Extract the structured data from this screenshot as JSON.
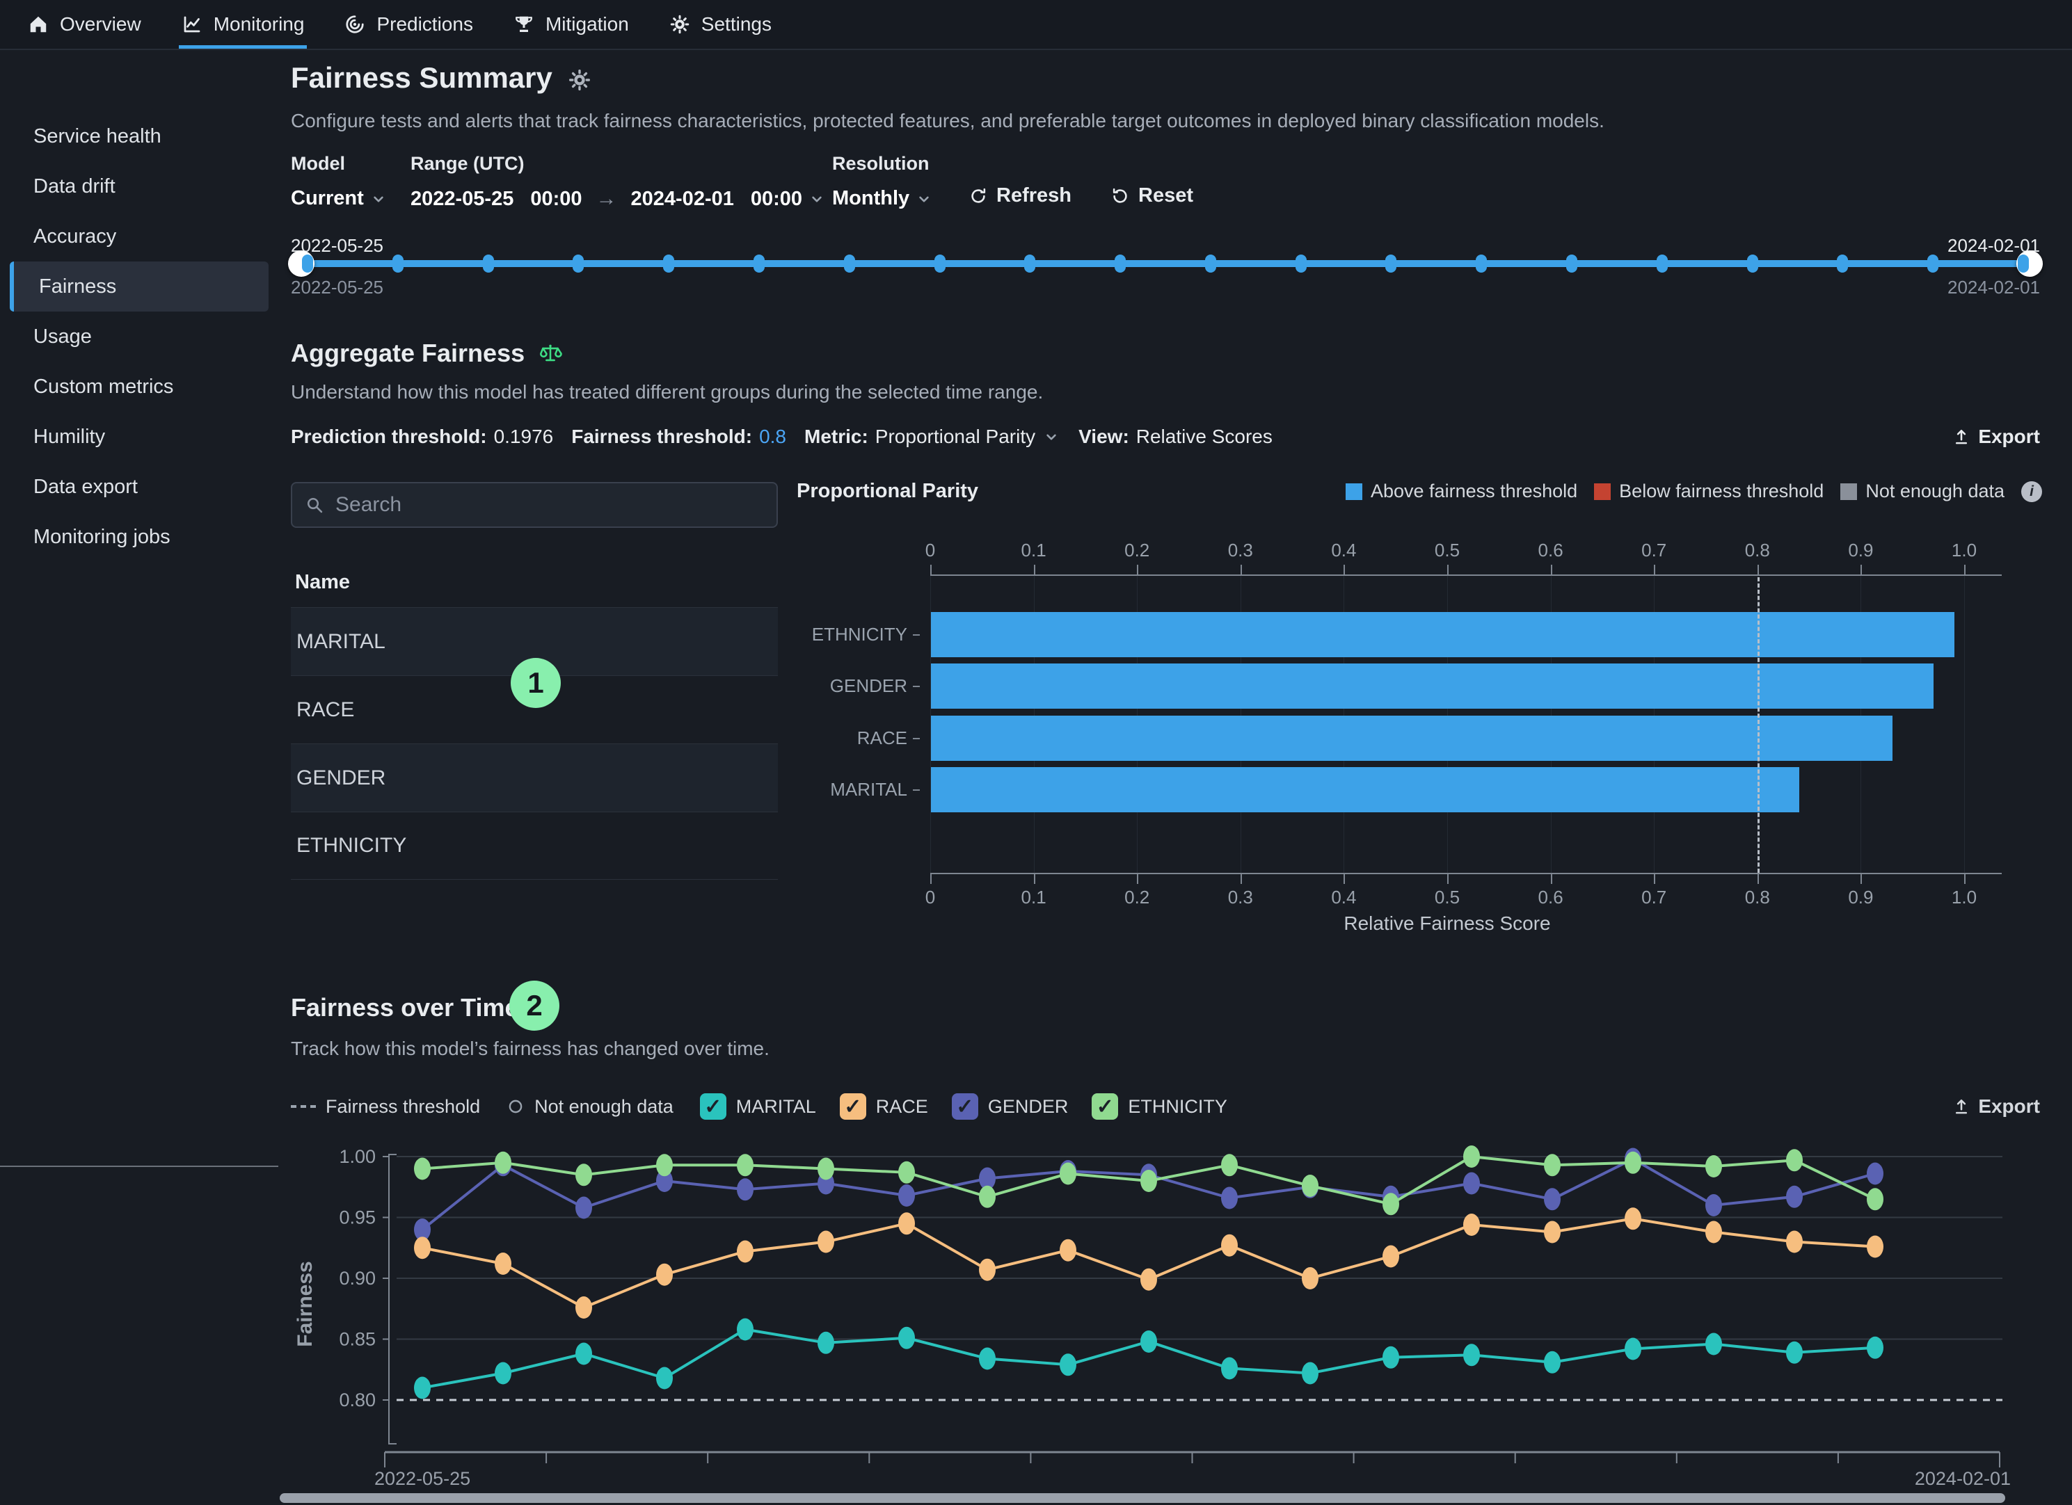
{
  "nav": {
    "items": [
      {
        "label": "Overview",
        "icon": "home-icon",
        "active": false
      },
      {
        "label": "Monitoring",
        "icon": "monitoring-icon",
        "active": true
      },
      {
        "label": "Predictions",
        "icon": "predictions-icon",
        "active": false
      },
      {
        "label": "Mitigation",
        "icon": "mitigation-icon",
        "active": false
      },
      {
        "label": "Settings",
        "icon": "settings-icon",
        "active": false
      }
    ]
  },
  "sidebar": {
    "items": [
      "Service health",
      "Data drift",
      "Accuracy",
      "Fairness",
      "Usage",
      "Custom metrics",
      "Humility",
      "Data export",
      "Monitoring jobs"
    ],
    "active_index": 3
  },
  "header": {
    "title": "Fairness Summary",
    "description": "Configure tests and alerts that track fairness characteristics, protected features, and preferable target outcomes in deployed binary classification models."
  },
  "controls": {
    "model_label": "Model",
    "model_value": "Current",
    "range_label": "Range (UTC)",
    "range_start": "2022-05-25",
    "range_start_time": "00:00",
    "range_end": "2024-02-01",
    "range_end_time": "00:00",
    "resolution_label": "Resolution",
    "resolution_value": "Monthly",
    "refresh_label": "Refresh",
    "reset_label": "Reset"
  },
  "timeline": {
    "start_label": "2022-05-25",
    "end_label": "2024-02-01",
    "start_sublabel": "2022-05-25",
    "end_sublabel": "2024-02-01",
    "dot_count": 20
  },
  "aggregate": {
    "title": "Aggregate Fairness",
    "description": "Understand how this model has treated different groups during the selected time range.",
    "prediction_threshold_label": "Prediction threshold:",
    "prediction_threshold": "0.1976",
    "fairness_threshold_label": "Fairness threshold:",
    "fairness_threshold": "0.8",
    "metric_label": "Metric:",
    "metric": "Proportional Parity",
    "view_label": "View:",
    "view": "Relative Scores",
    "export_label": "Export"
  },
  "feature_list": {
    "search_placeholder": "Search",
    "name_header": "Name",
    "rows": [
      "MARITAL",
      "RACE",
      "GENDER",
      "ETHNICITY"
    ]
  },
  "annotations": {
    "badge_1": "1",
    "badge_2": "2"
  },
  "fot": {
    "title": "Fairness over Time",
    "description": "Track how this model’s fairness has changed over time.",
    "legend": {
      "threshold_label": "Fairness threshold",
      "not_enough_label": "Not enough data",
      "toggles": [
        {
          "label": "MARITAL",
          "color": "#2ac3bd",
          "checked": true
        },
        {
          "label": "RACE",
          "color": "#f6be7f",
          "checked": true
        },
        {
          "label": "GENDER",
          "color": "#5a62b3",
          "checked": true
        },
        {
          "label": "ETHNICITY",
          "color": "#90da90",
          "checked": true
        }
      ],
      "export_label": "Export"
    }
  },
  "chart_data": [
    {
      "type": "bar",
      "title": "Proportional Parity",
      "categories": [
        "ETHNICITY",
        "GENDER",
        "RACE",
        "MARITAL"
      ],
      "values": [
        0.99,
        0.97,
        0.93,
        0.84
      ],
      "xlabel": "Relative Fairness Score",
      "xlim": [
        0,
        1.0
      ],
      "xticks": [
        "0",
        "0.1",
        "0.2",
        "0.3",
        "0.4",
        "0.5",
        "0.6",
        "0.7",
        "0.8",
        "0.9",
        "1.0"
      ],
      "threshold": 0.8,
      "bar_color": "#3da2e8",
      "grid": true,
      "legend_position": "top-right",
      "legend": [
        {
          "label": "Above fairness threshold",
          "color": "#3da2e8"
        },
        {
          "label": "Below fairness threshold",
          "color": "#c44331"
        },
        {
          "label": "Not enough data",
          "color": "#8a909a"
        }
      ]
    },
    {
      "type": "line",
      "title": "Fairness over Time",
      "ylabel": "Fairness",
      "ylim": [
        0.76,
        1.01
      ],
      "yticks": [
        "1.00",
        "0.95",
        "0.90",
        "0.85",
        "0.80"
      ],
      "threshold": 0.8,
      "grid": true,
      "x_start_label": "2022-05-25",
      "x_end_label": "2024-02-01",
      "x_tick_count": 11,
      "series": [
        {
          "name": "MARITAL",
          "color": "#2ac3bd",
          "values": [
            0.81,
            0.822,
            0.838,
            0.818,
            0.858,
            0.847,
            0.851,
            0.834,
            0.829,
            0.848,
            0.826,
            0.822,
            0.835,
            0.837,
            0.831,
            0.842,
            0.846,
            0.839,
            0.843
          ]
        },
        {
          "name": "RACE",
          "color": "#f6be7f",
          "values": [
            0.925,
            0.912,
            0.876,
            0.903,
            0.922,
            0.93,
            0.945,
            0.907,
            0.923,
            0.899,
            0.927,
            0.9,
            0.918,
            0.944,
            0.938,
            0.949,
            0.938,
            0.93,
            0.926
          ]
        },
        {
          "name": "GENDER",
          "color": "#5a62b3",
          "values": [
            0.94,
            0.993,
            0.958,
            0.98,
            0.973,
            0.978,
            0.968,
            0.982,
            0.988,
            0.985,
            0.966,
            0.975,
            0.967,
            0.978,
            0.965,
            0.998,
            0.96,
            0.967,
            0.986
          ]
        },
        {
          "name": "ETHNICITY",
          "color": "#90da90",
          "values": [
            0.99,
            0.995,
            0.985,
            0.993,
            0.993,
            0.99,
            0.987,
            0.967,
            0.986,
            0.98,
            0.993,
            0.976,
            0.961,
            1.0,
            0.993,
            0.995,
            0.992,
            0.997,
            0.965
          ]
        }
      ]
    }
  ]
}
